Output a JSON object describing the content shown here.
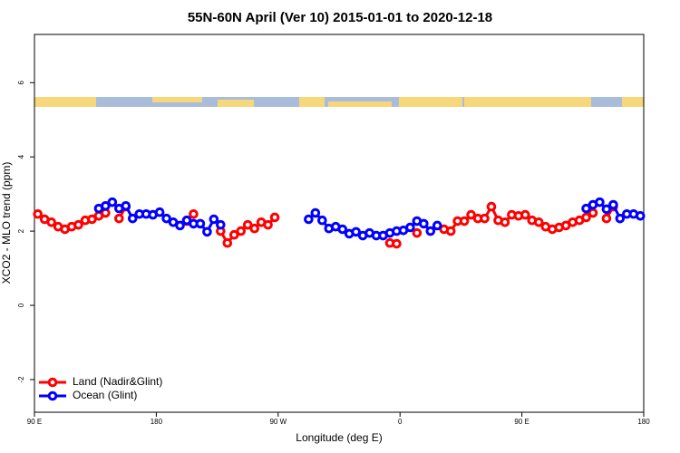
{
  "chart_data": {
    "type": "line",
    "title": "55N-60N April (Ver 10)   2015-01-01 to 2020-12-18",
    "xlabel": "Longitude (deg E)",
    "ylabel": "XCO2 - MLO trend (ppm)",
    "xlim": [
      90,
      540
    ],
    "ylim": [
      -2.88,
      7.3
    ],
    "xticks": [
      {
        "value": 90,
        "label": "90 E"
      },
      180,
      {
        "value": 270,
        "label": "90 W"
      },
      {
        "value": 360,
        "label": "0"
      },
      {
        "value": 450,
        "label": "90 E"
      },
      {
        "value": 540,
        "label": "180"
      }
    ],
    "yticks": [
      -2,
      0,
      2,
      4,
      6
    ],
    "legend": "bottom-left",
    "x": [
      92.5,
      97.5,
      102.5,
      107.5,
      112.5,
      117.5,
      122.5,
      127.5,
      132.5,
      137.5,
      142.5,
      147.5,
      152.5,
      157.5,
      162.5,
      167.5,
      172.5,
      177.5,
      182.5,
      187.5,
      192.5,
      197.5,
      202.5,
      207.5,
      212.5,
      217.5,
      222.5,
      227.5,
      232.5,
      237.5,
      242.5,
      247.5,
      252.5,
      257.5,
      262.5,
      267.5,
      272.5,
      277.5,
      282.5,
      287.5,
      292.5,
      297.5,
      302.5,
      307.5,
      312.5,
      317.5,
      322.5,
      327.5,
      332.5,
      337.5,
      342.5,
      347.5,
      352.5,
      357.5,
      362.5,
      367.5,
      372.5,
      377.5,
      382.5,
      387.5,
      392.5,
      397.5,
      402.5,
      407.5,
      412.5,
      417.5,
      422.5,
      427.5,
      432.5,
      437.5,
      442.5,
      447.5,
      452.5,
      457.5,
      462.5,
      467.5,
      472.5,
      477.5,
      482.5,
      487.5,
      492.5,
      497.5,
      502.5,
      507.5,
      512.5,
      517.5,
      522.5,
      527.5,
      532.5,
      537.5
    ],
    "series": [
      {
        "name": "Land (Nadir&Glint)",
        "color": "#ff0000",
        "values": [
          2.46,
          2.32,
          2.24,
          2.12,
          2.05,
          2.12,
          2.17,
          2.29,
          2.32,
          2.41,
          2.49,
          null,
          2.34,
          2.66,
          null,
          null,
          null,
          null,
          null,
          null,
          null,
          null,
          2.27,
          2.46,
          null,
          null,
          null,
          2.0,
          1.68,
          1.9,
          2.0,
          2.17,
          2.07,
          2.24,
          2.17,
          2.37,
          null,
          null,
          null,
          null,
          null,
          null,
          null,
          null,
          null,
          null,
          null,
          null,
          null,
          null,
          null,
          null,
          1.68,
          1.66,
          null,
          null,
          1.95,
          null,
          null,
          null,
          2.05,
          2.0,
          2.27,
          2.27,
          2.44,
          2.34,
          2.34,
          2.66,
          2.29,
          2.24,
          2.44,
          2.41,
          2.44,
          2.29,
          2.24,
          2.12,
          2.05,
          2.1,
          2.15,
          2.24,
          2.29,
          2.37,
          2.49,
          null,
          2.34,
          2.66,
          null,
          null,
          null,
          null
        ]
      },
      {
        "name": "Ocean (Glint)",
        "color": "#0000ff",
        "values": [
          null,
          null,
          null,
          null,
          null,
          null,
          null,
          null,
          null,
          2.61,
          2.68,
          2.78,
          2.61,
          2.68,
          2.34,
          2.46,
          2.46,
          2.44,
          2.51,
          2.34,
          2.24,
          2.15,
          2.29,
          2.2,
          2.2,
          1.98,
          2.32,
          2.17,
          null,
          null,
          null,
          null,
          null,
          null,
          null,
          null,
          null,
          null,
          null,
          null,
          2.32,
          2.49,
          2.29,
          2.07,
          2.12,
          2.05,
          1.93,
          1.98,
          1.88,
          1.95,
          1.88,
          1.88,
          1.95,
          2.0,
          2.02,
          2.1,
          2.27,
          2.2,
          2.0,
          2.15,
          null,
          null,
          null,
          null,
          null,
          null,
          null,
          null,
          null,
          null,
          null,
          null,
          null,
          null,
          null,
          null,
          null,
          null,
          null,
          null,
          null,
          2.61,
          2.71,
          2.78,
          2.59,
          2.71,
          2.34,
          2.46,
          2.46,
          2.41
        ]
      }
    ]
  }
}
